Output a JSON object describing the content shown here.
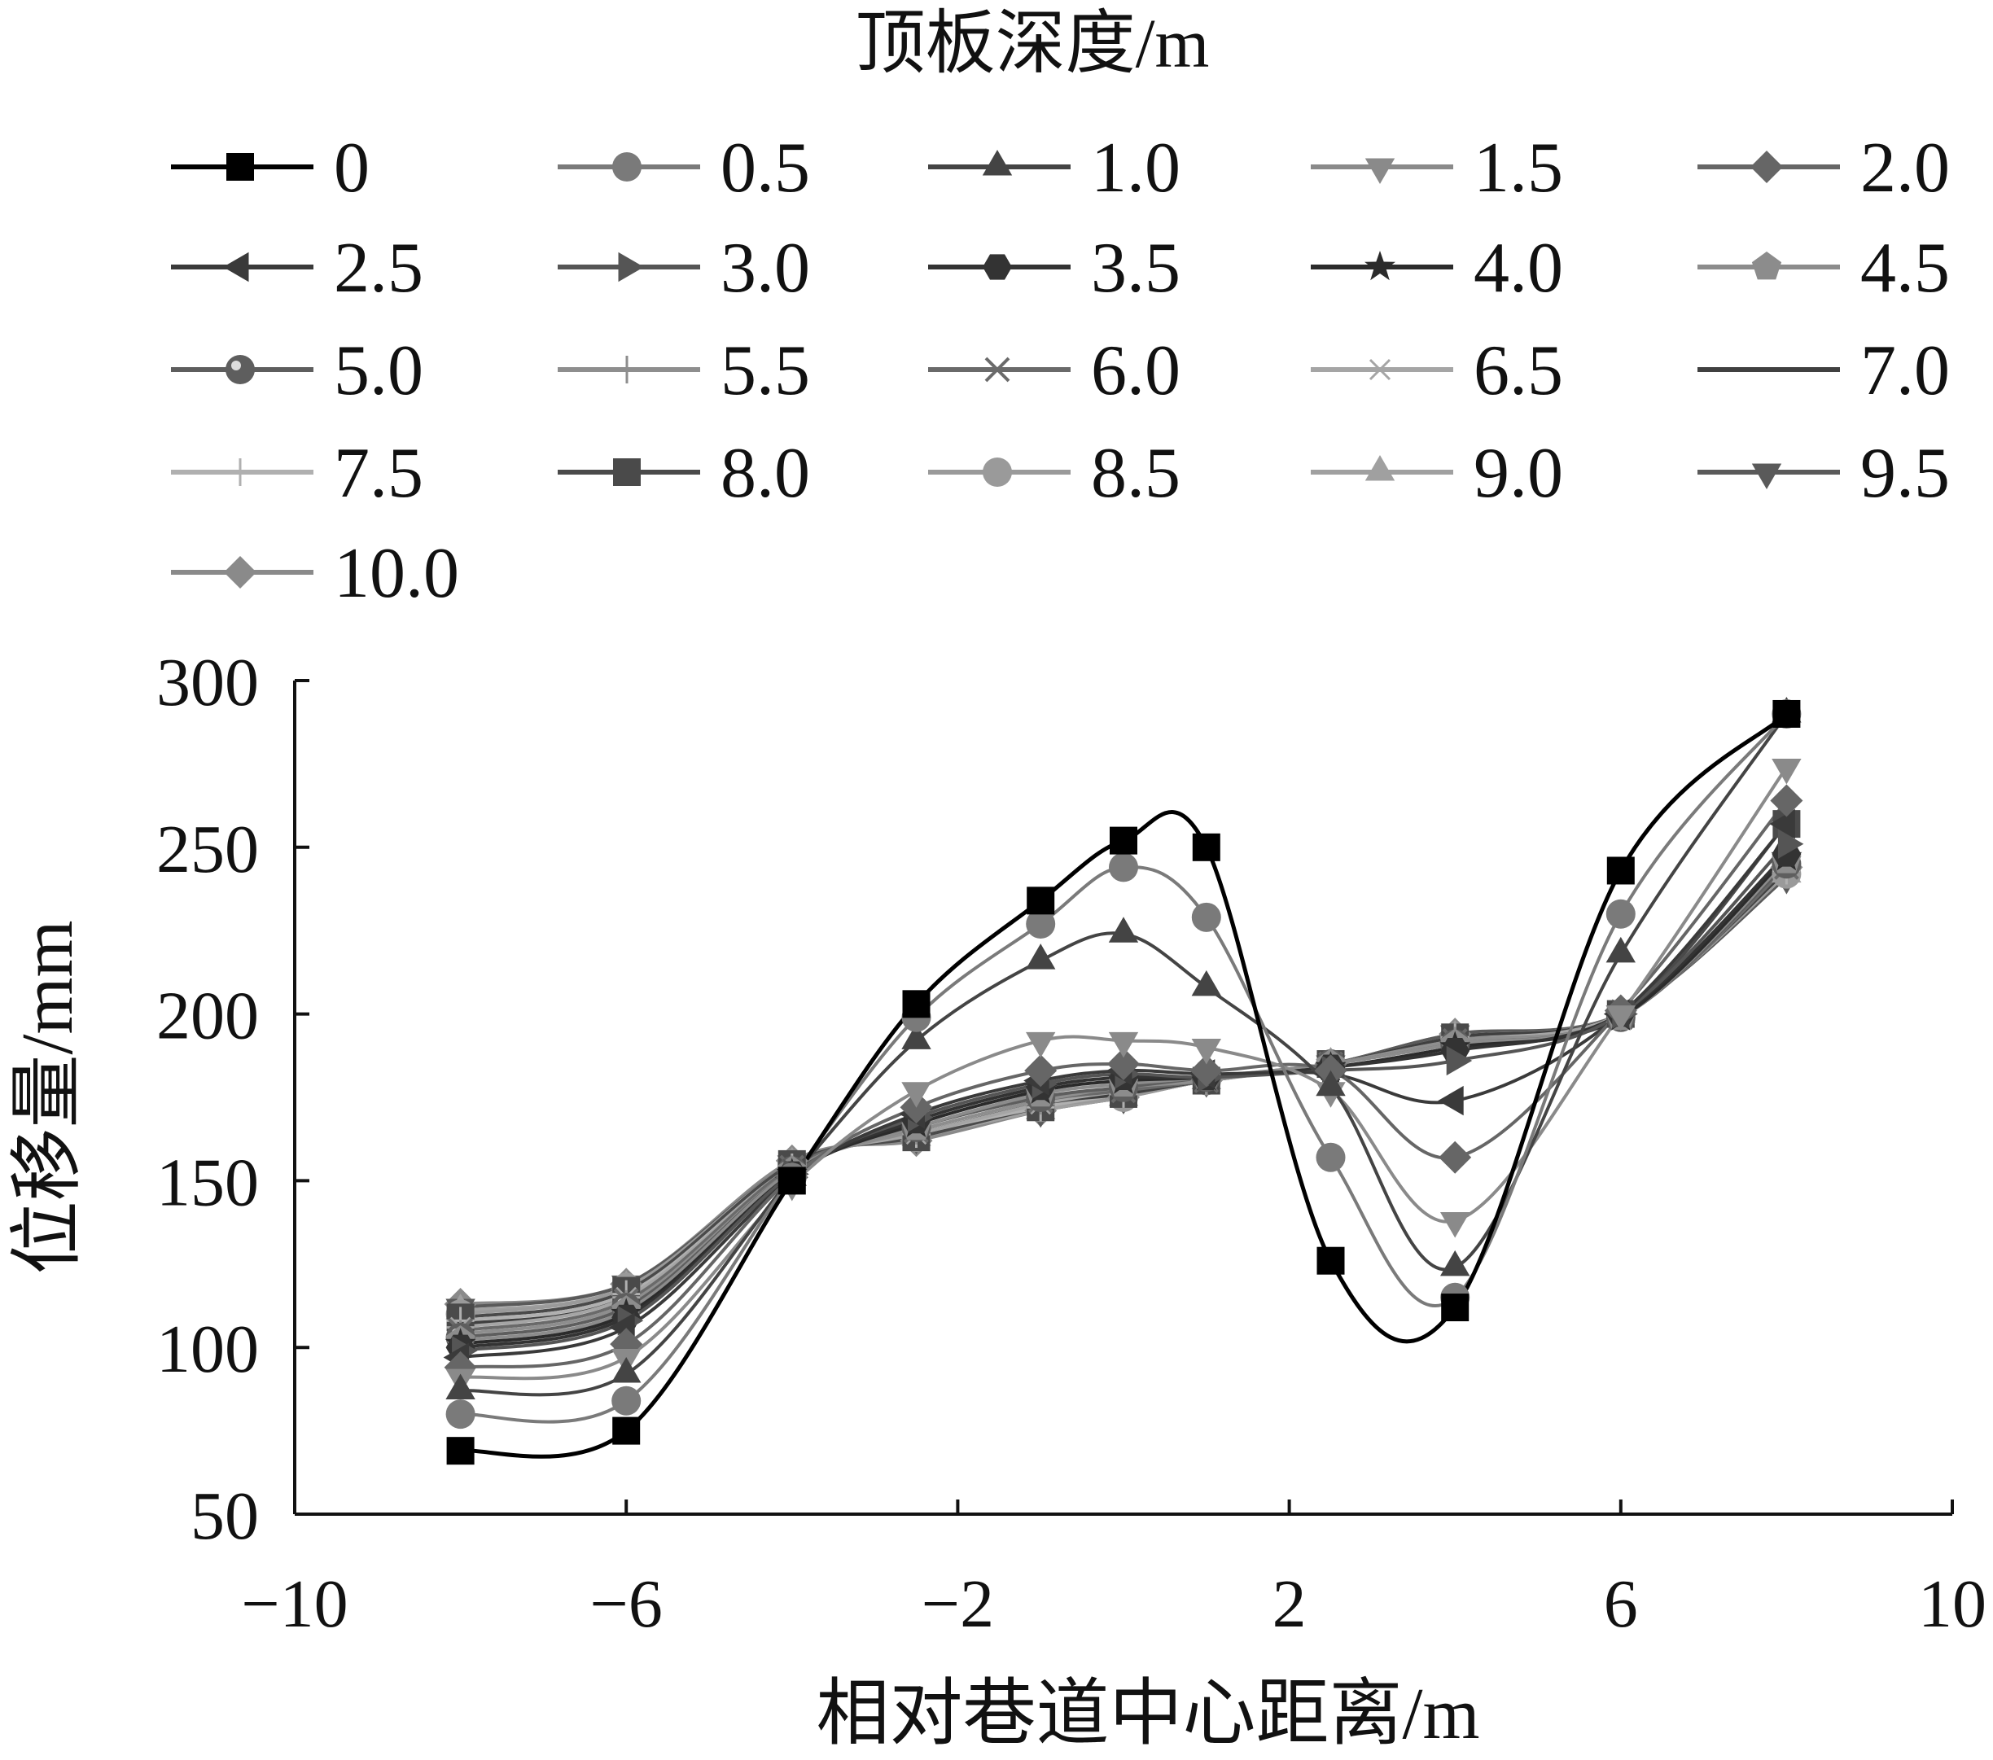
{
  "chart_data": {
    "type": "line",
    "title": "",
    "legend_title": "顶板深度/m",
    "legend_placement": "top",
    "xlabel": "相对巷道中心距离/m",
    "ylabel": "位移量/mm",
    "xlim": [
      -10,
      10
    ],
    "ylim": [
      50,
      300
    ],
    "xticks": [
      -10,
      -6,
      -2,
      2,
      6,
      10
    ],
    "xtick_labels": [
      "−10",
      "−6",
      "−2",
      "2",
      "6",
      "10"
    ],
    "yticks": [
      50,
      100,
      150,
      200,
      250,
      300
    ],
    "ytick_labels": [
      "50",
      "100",
      "150",
      "200",
      "250",
      "300"
    ],
    "grid": false,
    "x": [
      -8,
      -6,
      -4,
      -2.5,
      -1,
      0,
      1,
      2.5,
      4,
      6,
      8
    ],
    "series": [
      {
        "name": "0",
        "color": "#000000",
        "marker": "square",
        "values": [
          69,
          75,
          150,
          203,
          234,
          252,
          250,
          126,
          112,
          243,
          290
        ]
      },
      {
        "name": "0.5",
        "color": "#7a7a7a",
        "marker": "circle",
        "values": [
          80,
          84,
          151,
          199,
          227,
          244,
          229,
          157,
          115,
          230,
          290
        ]
      },
      {
        "name": "1.0",
        "color": "#444444",
        "marker": "triangle-up",
        "values": [
          87,
          92,
          151,
          192,
          216,
          224,
          208,
          178,
          124,
          218,
          290
        ]
      },
      {
        "name": "1.5",
        "color": "#8a8a8a",
        "marker": "triangle-down",
        "values": [
          91,
          97,
          149,
          177,
          192,
          192,
          190,
          177,
          138,
          200,
          274
        ]
      },
      {
        "name": "2.0",
        "color": "#666666",
        "marker": "diamond",
        "values": [
          94,
          101,
          151,
          172,
          183,
          185,
          183,
          183,
          157,
          201,
          264
        ]
      },
      {
        "name": "2.5",
        "color": "#3a3a3a",
        "marker": "triangle-left",
        "values": [
          97,
          106,
          151,
          170,
          180,
          183,
          182,
          182,
          174,
          200,
          257
        ]
      },
      {
        "name": "3.0",
        "color": "#555555",
        "marker": "triangle-right",
        "values": [
          99,
          108,
          152,
          169,
          179,
          182,
          181,
          183,
          186,
          200,
          251
        ]
      },
      {
        "name": "3.5",
        "color": "#333333",
        "marker": "hexagon",
        "values": [
          100,
          109,
          152,
          168,
          178,
          181,
          181,
          184,
          189,
          200,
          248
        ]
      },
      {
        "name": "4.0",
        "color": "#2b2b2b",
        "marker": "star",
        "values": [
          101,
          110,
          152,
          167,
          177,
          180,
          181,
          184,
          190,
          199,
          247
        ]
      },
      {
        "name": "4.5",
        "color": "#8c8c8c",
        "marker": "pentagon",
        "values": [
          102,
          111,
          153,
          166,
          176,
          179,
          181,
          185,
          191,
          199,
          246
        ]
      },
      {
        "name": "5.0",
        "color": "#5e5e5e",
        "marker": "sphere",
        "values": [
          103,
          112,
          153,
          166,
          175,
          178,
          181,
          185,
          191,
          199,
          245
        ]
      },
      {
        "name": "5.5",
        "color": "#8e8e8e",
        "marker": "plus",
        "values": [
          104,
          113,
          153,
          165,
          174,
          178,
          180,
          185,
          192,
          199,
          245
        ]
      },
      {
        "name": "6.0",
        "color": "#6a6a6a",
        "marker": "x",
        "values": [
          105,
          114,
          154,
          165,
          174,
          177,
          180,
          185,
          192,
          199,
          244
        ]
      },
      {
        "name": "6.5",
        "color": "#a5a5a5",
        "marker": "asterisk",
        "values": [
          106,
          115,
          154,
          164,
          173,
          177,
          180,
          185,
          192,
          200,
          244
        ]
      },
      {
        "name": "7.0",
        "color": "#404040",
        "marker": "none",
        "values": [
          107,
          115,
          154,
          164,
          173,
          176,
          180,
          185,
          193,
          200,
          243
        ]
      },
      {
        "name": "7.5",
        "color": "#b0b0b0",
        "marker": "plus",
        "values": [
          108,
          116,
          154,
          164,
          172,
          176,
          180,
          185,
          193,
          200,
          243
        ]
      },
      {
        "name": "8.0",
        "color": "#4a4a4a",
        "marker": "square",
        "values": [
          109,
          117,
          155,
          163,
          172,
          176,
          180,
          185,
          193,
          200,
          257
        ]
      },
      {
        "name": "8.5",
        "color": "#9a9a9a",
        "marker": "circle",
        "values": [
          110,
          118,
          155,
          163,
          172,
          175,
          180,
          185,
          193,
          200,
          242
        ]
      },
      {
        "name": "9.0",
        "color": "#a0a0a0",
        "marker": "triangle-up",
        "values": [
          111,
          118,
          155,
          163,
          171,
          175,
          180,
          185,
          193,
          200,
          242
        ]
      },
      {
        "name": "9.5",
        "color": "#5a5a5a",
        "marker": "triangle-down",
        "values": [
          112,
          119,
          155,
          163,
          171,
          175,
          180,
          185,
          194,
          200,
          241
        ]
      },
      {
        "name": "10.0",
        "color": "#8a8a8a",
        "marker": "diamond",
        "values": [
          113,
          119,
          156,
          162,
          171,
          175,
          180,
          185,
          194,
          200,
          244
        ]
      }
    ]
  }
}
